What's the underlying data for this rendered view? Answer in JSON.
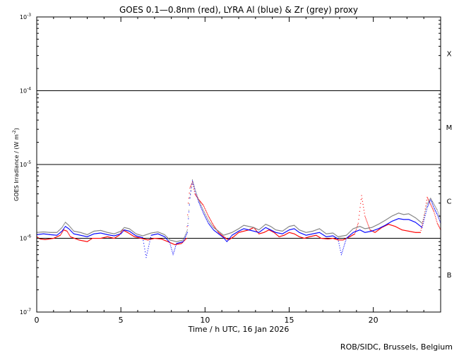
{
  "chart_data": {
    "type": "scatter",
    "title": "GOES 0.1—0.8nm (red), LYRA Al (blue) & Zr (grey) proxy",
    "xlabel": "Time / h UTC, 16 Jan 2026",
    "ylabel": "GOES Irradiance / (W m",
    "ylabel_sup": "-2",
    "ylabel_close": ")",
    "xlim": [
      0,
      24
    ],
    "ylim": [
      1e-07,
      0.001
    ],
    "yscale": "log",
    "xticks": [
      0,
      5,
      10,
      15,
      20
    ],
    "yticks": [
      {
        "value": 1e-07,
        "base": "10",
        "exp": "-7"
      },
      {
        "value": 1e-06,
        "base": "10",
        "exp": "-6"
      },
      {
        "value": 1e-05,
        "base": "10",
        "exp": "-5"
      },
      {
        "value": 0.0001,
        "base": "10",
        "exp": "-4"
      },
      {
        "value": 0.001,
        "base": "10",
        "exp": "-3"
      }
    ],
    "flare_classes": [
      {
        "label": "B",
        "value": 3.2e-07
      },
      {
        "label": "C",
        "value": 3.2e-06
      },
      {
        "label": "M",
        "value": 3.2e-05
      },
      {
        "label": "X",
        "value": 0.00032
      }
    ],
    "class_lines": [
      1e-06,
      1e-05,
      0.0001
    ],
    "series": [
      {
        "name": "GOES 0.1—0.8nm",
        "color": "#ff0000",
        "points": [
          [
            0,
            1.05e-06
          ],
          [
            0.2,
            9.8e-07
          ],
          [
            0.5,
            9.6e-07
          ],
          [
            1,
            1e-06
          ],
          [
            1.4,
            1.1e-06
          ],
          [
            1.6,
            1.3e-06
          ],
          [
            1.8,
            1.25e-06
          ],
          [
            2.0,
            1.05e-06
          ],
          [
            2.5,
            9.5e-07
          ],
          [
            3.0,
            9e-07
          ],
          [
            3.3,
            1e-06
          ],
          [
            3.8,
            1e-06
          ],
          [
            4.2,
            1.05e-06
          ],
          [
            4.6,
            1e-06
          ],
          [
            4.9,
            1.1e-06
          ],
          [
            5.1,
            1.3e-06
          ],
          [
            5.4,
            1.2e-06
          ],
          [
            5.8,
            1.05e-06
          ],
          [
            6.2,
            1e-06
          ],
          [
            6.6,
            9.5e-07
          ],
          [
            7.0,
            1e-06
          ],
          [
            7.4,
            9.8e-07
          ],
          [
            7.8,
            9e-07
          ],
          [
            8.2,
            8.2e-07
          ],
          [
            8.6,
            8.5e-07
          ],
          [
            8.9,
            1e-06
          ],
          [
            9.0,
            3e-06
          ],
          [
            9.1,
            4.8e-06
          ],
          [
            9.25,
            5.8e-06
          ],
          [
            9.4,
            4e-06
          ],
          [
            9.6,
            3.4e-06
          ],
          [
            9.9,
            2.8e-06
          ],
          [
            10.2,
            2e-06
          ],
          [
            10.5,
            1.5e-06
          ],
          [
            10.8,
            1.2e-06
          ],
          [
            11.1,
            1.05e-06
          ],
          [
            11.4,
            9.5e-07
          ],
          [
            11.7,
            1.05e-06
          ],
          [
            12.0,
            1.2e-06
          ],
          [
            12.3,
            1.25e-06
          ],
          [
            12.6,
            1.3e-06
          ],
          [
            12.9,
            1.4e-06
          ],
          [
            13.2,
            1.15e-06
          ],
          [
            13.5,
            1.2e-06
          ],
          [
            13.8,
            1.3e-06
          ],
          [
            14.1,
            1.2e-06
          ],
          [
            14.4,
            1.05e-06
          ],
          [
            14.7,
            1.1e-06
          ],
          [
            15.0,
            1.2e-06
          ],
          [
            15.3,
            1.15e-06
          ],
          [
            15.6,
            1.05e-06
          ],
          [
            15.9,
            1e-06
          ],
          [
            16.2,
            1.05e-06
          ],
          [
            16.6,
            1.1e-06
          ],
          [
            16.9,
            1e-06
          ],
          [
            17.3,
            9.8e-07
          ],
          [
            17.6,
            1e-06
          ],
          [
            17.9,
            9.5e-07
          ],
          [
            18.2,
            9.5e-07
          ],
          [
            18.6,
            1.05e-06
          ],
          [
            18.9,
            1.15e-06
          ],
          [
            19.1,
            1.6e-06
          ],
          [
            19.3,
            3.8e-06
          ],
          [
            19.5,
            2e-06
          ],
          [
            19.8,
            1.3e-06
          ],
          [
            20.1,
            1.2e-06
          ],
          [
            20.5,
            1.4e-06
          ],
          [
            20.9,
            1.55e-06
          ],
          [
            21.3,
            1.45e-06
          ],
          [
            21.7,
            1.3e-06
          ],
          [
            22.1,
            1.25e-06
          ],
          [
            22.5,
            1.2e-06
          ],
          [
            22.8,
            1.2e-06
          ],
          [
            23.0,
            1.9e-06
          ],
          [
            23.2,
            3.6e-06
          ],
          [
            23.4,
            2.9e-06
          ],
          [
            23.6,
            2.3e-06
          ],
          [
            23.8,
            1.6e-06
          ],
          [
            24.0,
            1.3e-06
          ]
        ]
      },
      {
        "name": "LYRA Al",
        "color": "#0000ff",
        "points": [
          [
            0,
            1.12e-06
          ],
          [
            0.4,
            1.15e-06
          ],
          [
            0.8,
            1.12e-06
          ],
          [
            1.2,
            1.1e-06
          ],
          [
            1.5,
            1.25e-06
          ],
          [
            1.7,
            1.45e-06
          ],
          [
            1.9,
            1.35e-06
          ],
          [
            2.2,
            1.15e-06
          ],
          [
            2.6,
            1.1e-06
          ],
          [
            3.0,
            1.05e-06
          ],
          [
            3.4,
            1.15e-06
          ],
          [
            3.8,
            1.18e-06
          ],
          [
            4.2,
            1.12e-06
          ],
          [
            4.6,
            1.08e-06
          ],
          [
            5.0,
            1.15e-06
          ],
          [
            5.2,
            1.3e-06
          ],
          [
            5.5,
            1.25e-06
          ],
          [
            5.9,
            1.08e-06
          ],
          [
            6.3,
            1.02e-06
          ],
          [
            6.5,
            5.5e-07
          ],
          [
            6.8,
            1.1e-06
          ],
          [
            7.2,
            1.15e-06
          ],
          [
            7.6,
            1.05e-06
          ],
          [
            7.9,
            8.8e-07
          ],
          [
            8.1,
            6e-07
          ],
          [
            8.3,
            8.5e-07
          ],
          [
            8.7,
            9e-07
          ],
          [
            8.95,
            1.2e-06
          ],
          [
            9.1,
            3.5e-06
          ],
          [
            9.25,
            6e-06
          ],
          [
            9.4,
            4.5e-06
          ],
          [
            9.6,
            3.2e-06
          ],
          [
            9.9,
            2.2e-06
          ],
          [
            10.2,
            1.6e-06
          ],
          [
            10.5,
            1.3e-06
          ],
          [
            10.8,
            1.15e-06
          ],
          [
            11.1,
            1.02e-06
          ],
          [
            11.3,
            9e-07
          ],
          [
            11.6,
            1.1e-06
          ],
          [
            12.0,
            1.25e-06
          ],
          [
            12.3,
            1.35e-06
          ],
          [
            12.6,
            1.3e-06
          ],
          [
            12.9,
            1.25e-06
          ],
          [
            13.2,
            1.2e-06
          ],
          [
            13.6,
            1.4e-06
          ],
          [
            13.9,
            1.3e-06
          ],
          [
            14.2,
            1.2e-06
          ],
          [
            14.6,
            1.15e-06
          ],
          [
            15.0,
            1.3e-06
          ],
          [
            15.3,
            1.35e-06
          ],
          [
            15.6,
            1.2e-06
          ],
          [
            16.0,
            1.1e-06
          ],
          [
            16.4,
            1.15e-06
          ],
          [
            16.8,
            1.2e-06
          ],
          [
            17.2,
            1.05e-06
          ],
          [
            17.6,
            1.08e-06
          ],
          [
            17.9,
            9.8e-07
          ],
          [
            18.1,
            6e-07
          ],
          [
            18.4,
            1e-06
          ],
          [
            18.8,
            1.2e-06
          ],
          [
            19.2,
            1.3e-06
          ],
          [
            19.5,
            1.2e-06
          ],
          [
            19.9,
            1.25e-06
          ],
          [
            20.3,
            1.35e-06
          ],
          [
            20.7,
            1.5e-06
          ],
          [
            21.1,
            1.7e-06
          ],
          [
            21.5,
            1.85e-06
          ],
          [
            21.8,
            1.8e-06
          ],
          [
            22.1,
            1.8e-06
          ],
          [
            22.5,
            1.65e-06
          ],
          [
            22.9,
            1.4e-06
          ],
          [
            23.2,
            2.6e-06
          ],
          [
            23.4,
            3.4e-06
          ],
          [
            23.6,
            2.6e-06
          ],
          [
            23.8,
            2.1e-06
          ],
          [
            24.0,
            1.6e-06
          ]
        ]
      },
      {
        "name": "LYRA Zr",
        "color": "#808080",
        "points": [
          [
            0,
            1.2e-06
          ],
          [
            0.4,
            1.22e-06
          ],
          [
            0.8,
            1.2e-06
          ],
          [
            1.2,
            1.2e-06
          ],
          [
            1.5,
            1.4e-06
          ],
          [
            1.7,
            1.65e-06
          ],
          [
            1.9,
            1.5e-06
          ],
          [
            2.2,
            1.25e-06
          ],
          [
            2.6,
            1.2e-06
          ],
          [
            3.0,
            1.12e-06
          ],
          [
            3.4,
            1.25e-06
          ],
          [
            3.8,
            1.28e-06
          ],
          [
            4.2,
            1.2e-06
          ],
          [
            4.6,
            1.15e-06
          ],
          [
            5.0,
            1.25e-06
          ],
          [
            5.2,
            1.4e-06
          ],
          [
            5.5,
            1.35e-06
          ],
          [
            5.9,
            1.15e-06
          ],
          [
            6.3,
            1.08e-06
          ],
          [
            6.8,
            1.18e-06
          ],
          [
            7.2,
            1.22e-06
          ],
          [
            7.6,
            1.12e-06
          ],
          [
            7.9,
            9.5e-07
          ],
          [
            8.3,
            9e-07
          ],
          [
            8.7,
            9.5e-07
          ],
          [
            8.95,
            1.3e-06
          ],
          [
            9.1,
            3.6e-06
          ],
          [
            9.25,
            6.2e-06
          ],
          [
            9.4,
            4.7e-06
          ],
          [
            9.6,
            3.4e-06
          ],
          [
            9.9,
            2.4e-06
          ],
          [
            10.2,
            1.75e-06
          ],
          [
            10.5,
            1.4e-06
          ],
          [
            10.8,
            1.25e-06
          ],
          [
            11.1,
            1.1e-06
          ],
          [
            11.6,
            1.2e-06
          ],
          [
            12.0,
            1.35e-06
          ],
          [
            12.3,
            1.5e-06
          ],
          [
            12.6,
            1.45e-06
          ],
          [
            12.9,
            1.4e-06
          ],
          [
            13.2,
            1.3e-06
          ],
          [
            13.6,
            1.55e-06
          ],
          [
            13.9,
            1.45e-06
          ],
          [
            14.2,
            1.3e-06
          ],
          [
            14.6,
            1.25e-06
          ],
          [
            15.0,
            1.45e-06
          ],
          [
            15.3,
            1.5e-06
          ],
          [
            15.6,
            1.3e-06
          ],
          [
            16.0,
            1.2e-06
          ],
          [
            16.4,
            1.25e-06
          ],
          [
            16.8,
            1.35e-06
          ],
          [
            17.2,
            1.15e-06
          ],
          [
            17.6,
            1.18e-06
          ],
          [
            17.9,
            1.05e-06
          ],
          [
            18.4,
            1.1e-06
          ],
          [
            18.8,
            1.35e-06
          ],
          [
            19.2,
            1.45e-06
          ],
          [
            19.5,
            1.35e-06
          ],
          [
            19.9,
            1.4e-06
          ],
          [
            20.3,
            1.55e-06
          ],
          [
            20.7,
            1.75e-06
          ],
          [
            21.1,
            2e-06
          ],
          [
            21.5,
            2.2e-06
          ],
          [
            21.8,
            2.1e-06
          ],
          [
            22.1,
            2.15e-06
          ],
          [
            22.5,
            1.9e-06
          ],
          [
            22.9,
            1.6e-06
          ],
          [
            23.2,
            2.9e-06
          ],
          [
            23.4,
            3.5e-06
          ],
          [
            23.6,
            2.9e-06
          ],
          [
            23.8,
            2.4e-06
          ],
          [
            24.0,
            1.8e-06
          ]
        ]
      }
    ]
  },
  "footer": {
    "credit": "ROB/SIDC, Brussels, Belgium"
  }
}
